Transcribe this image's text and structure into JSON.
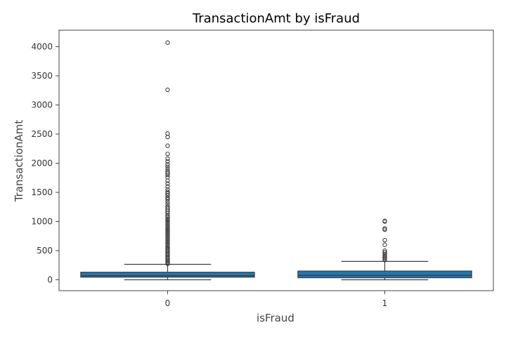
{
  "chart_data": {
    "type": "box",
    "title": "TransactionAmt by isFraud",
    "xlabel": "isFraud",
    "ylabel": "TransactionAmt",
    "ylim": [
      -200,
      4300
    ],
    "yticks": [
      0,
      500,
      1000,
      1500,
      2000,
      2500,
      3000,
      3500,
      4000
    ],
    "grid": false,
    "categories": [
      "0",
      "1"
    ],
    "boxes": [
      {
        "category": "0",
        "whisker_low": 0,
        "q1": 45,
        "median": 70,
        "q3": 130,
        "whisker_high": 265,
        "outliers": [
          275,
          290,
          310,
          330,
          350,
          370,
          390,
          410,
          430,
          450,
          470,
          490,
          510,
          530,
          550,
          575,
          600,
          625,
          650,
          675,
          700,
          725,
          750,
          775,
          800,
          825,
          850,
          875,
          900,
          925,
          950,
          975,
          1000,
          1025,
          1050,
          1075,
          1100,
          1140,
          1170,
          1200,
          1230,
          1260,
          1300,
          1340,
          1380,
          1410,
          1450,
          1480,
          1510,
          1550,
          1600,
          1650,
          1700,
          1760,
          1800,
          1830,
          1860,
          1900,
          1940,
          1980,
          2030,
          2080,
          2160,
          2300,
          2450,
          2510,
          3260,
          4070
        ],
        "color": "#1f77b4"
      },
      {
        "category": "1",
        "whisker_low": 0,
        "q1": 35,
        "median": 75,
        "q3": 150,
        "whisker_high": 315,
        "outliers": [
          340,
          360,
          380,
          400,
          420,
          440,
          470,
          500,
          600,
          680,
          860,
          880,
          1000,
          1010
        ],
        "color": "#1f77b4"
      }
    ]
  }
}
